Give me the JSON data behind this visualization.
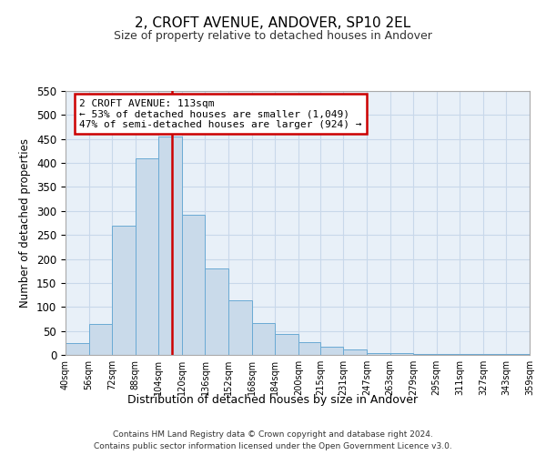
{
  "title": "2, CROFT AVENUE, ANDOVER, SP10 2EL",
  "subtitle": "Size of property relative to detached houses in Andover",
  "xlabel": "Distribution of detached houses by size in Andover",
  "ylabel": "Number of detached properties",
  "bar_edges": [
    40,
    56,
    72,
    88,
    104,
    120,
    136,
    152,
    168,
    184,
    200,
    215,
    231,
    247,
    263,
    279,
    295,
    311,
    327,
    343,
    359
  ],
  "bar_heights": [
    25,
    65,
    270,
    410,
    455,
    293,
    180,
    113,
    67,
    44,
    27,
    18,
    11,
    4,
    3,
    2,
    1,
    2,
    1,
    2
  ],
  "bar_color": "#c9daea",
  "bar_edgecolor": "#6aaad4",
  "property_value": 113,
  "vline_color": "#cc0000",
  "annotation_title": "2 CROFT AVENUE: 113sqm",
  "annotation_line1": "← 53% of detached houses are smaller (1,049)",
  "annotation_line2": "47% of semi-detached houses are larger (924) →",
  "annotation_box_edgecolor": "#cc0000",
  "annotation_box_facecolor": "#ffffff",
  "ylim": [
    0,
    550
  ],
  "yticks": [
    0,
    50,
    100,
    150,
    200,
    250,
    300,
    350,
    400,
    450,
    500,
    550
  ],
  "tick_labels": [
    "40sqm",
    "56sqm",
    "72sqm",
    "88sqm",
    "104sqm",
    "120sqm",
    "136sqm",
    "152sqm",
    "168sqm",
    "184sqm",
    "200sqm",
    "215sqm",
    "231sqm",
    "247sqm",
    "263sqm",
    "279sqm",
    "295sqm",
    "311sqm",
    "327sqm",
    "343sqm",
    "359sqm"
  ],
  "footnote1": "Contains HM Land Registry data © Crown copyright and database right 2024.",
  "footnote2": "Contains public sector information licensed under the Open Government Licence v3.0.",
  "grid_color": "#c8d8ea",
  "background_color": "#e8f0f8",
  "title_fontsize": 11,
  "subtitle_fontsize": 9
}
